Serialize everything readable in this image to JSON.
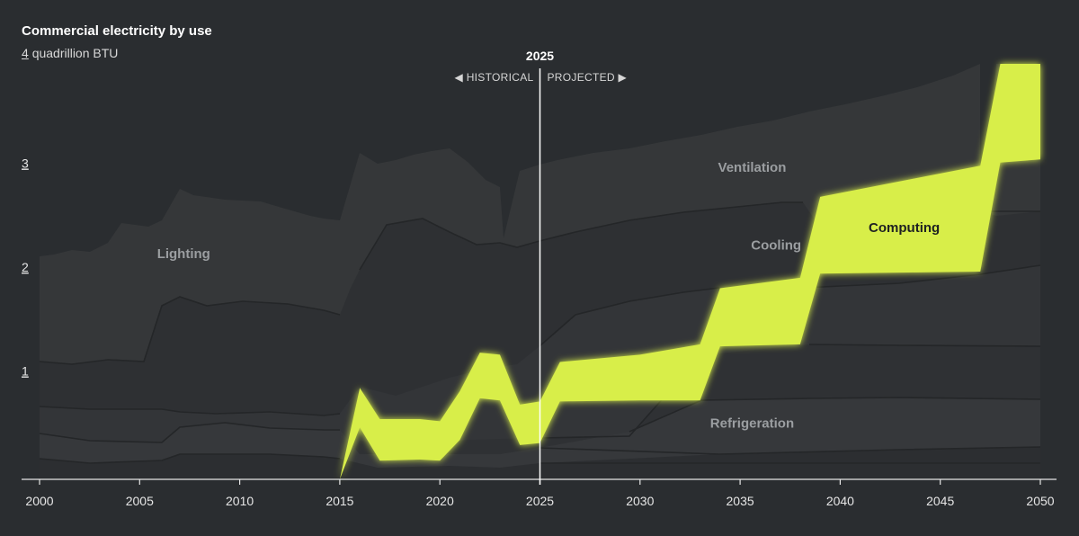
{
  "chart_data": {
    "type": "area",
    "title": "Commercial electricity by use",
    "ylabel_top": "4",
    "ylabel_unit": "quadrillion BTU",
    "xlim": [
      2000,
      2050
    ],
    "ylim": [
      0,
      4
    ],
    "x_ticks": [
      "2000",
      "2005",
      "2010",
      "2015",
      "2020",
      "2025",
      "2030",
      "2035",
      "2040",
      "2045",
      "2050"
    ],
    "y_ticks": [
      "1",
      "2",
      "3"
    ],
    "marker": {
      "year": "2025",
      "left_label": "◀ HISTORICAL",
      "right_label": "PROJECTED ▶"
    },
    "highlight_color": "#d8ee4a",
    "x": [
      2015,
      2016,
      2017,
      2019,
      2020,
      2021,
      2022,
      2023,
      2024,
      2025,
      2026,
      2030,
      2033,
      2034,
      2038,
      2039,
      2047,
      2048,
      2050
    ],
    "series": [
      {
        "name": "Computing",
        "lower": [
          0.0,
          0.5,
          0.18,
          0.19,
          0.18,
          0.38,
          0.78,
          0.76,
          0.33,
          0.35,
          0.75,
          0.76,
          0.76,
          1.28,
          1.3,
          1.98,
          2.0,
          3.05,
          3.08
        ],
        "upper": [
          0.0,
          0.88,
          0.58,
          0.58,
          0.56,
          0.85,
          1.22,
          1.2,
          0.72,
          0.75,
          1.13,
          1.2,
          1.3,
          1.84,
          1.94,
          2.72,
          3.02,
          4.0,
          4.0
        ]
      }
    ],
    "labels": [
      {
        "text": "Lighting",
        "x": 2007.2,
        "y": 2.13
      },
      {
        "text": "Ventilation",
        "x": 2035.6,
        "y": 2.96
      },
      {
        "text": "Cooling",
        "x": 2036.8,
        "y": 2.21
      },
      {
        "text": "Computing",
        "x": 2043.2,
        "y": 2.38
      },
      {
        "text": "Refrigeration",
        "x": 2035.6,
        "y": 0.5
      }
    ]
  }
}
